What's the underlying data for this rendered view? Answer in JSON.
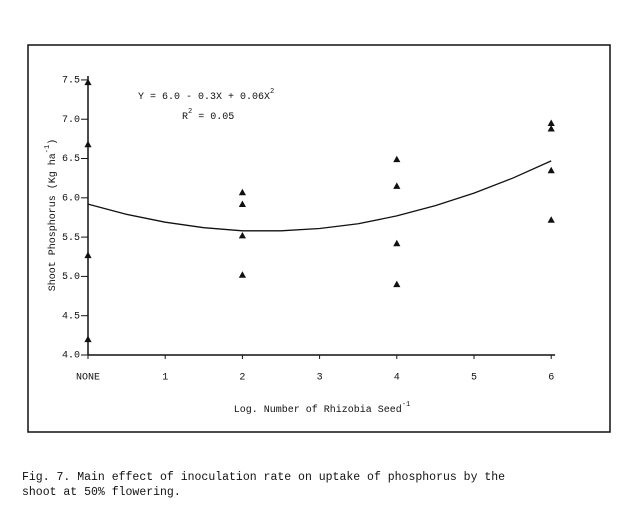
{
  "chart_data": {
    "type": "scatter",
    "xlabel": {
      "text": "Log. Number of Rhizobia Seed",
      "sup": "-1"
    },
    "ylabel": {
      "text": "Shoot Phosphorus (Kg ha",
      "sup": "-1",
      "end": ")"
    },
    "annotations": [
      {
        "text": "Y = 6.0 - 0.3X + 0.06X",
        "sup": "2"
      },
      {
        "text": "R",
        "sup": "2",
        "end": " = 0.05"
      }
    ],
    "caption": [
      "Fig. 7. Main effect of inoculation rate on uptake of phosphorus by the",
      "shoot at 50% flowering."
    ],
    "xlim": [
      0,
      6.05
    ],
    "ylim": [
      4,
      7.55
    ],
    "xticks": [
      {
        "value": 0,
        "label": "NONE"
      },
      1,
      2,
      3,
      4,
      5,
      6
    ],
    "yticks": [
      {
        "value": 4,
        "label": "4.0"
      },
      4.5,
      {
        "value": 5,
        "label": "5.0"
      },
      5.5,
      {
        "value": 6,
        "label": "6.0"
      },
      6.5,
      {
        "value": 7,
        "label": "7.0"
      },
      7.5
    ],
    "series": [
      {
        "type": "scatter",
        "marker": "triangle",
        "color": "#111111",
        "x": [
          0,
          0,
          0,
          0,
          2,
          2,
          2,
          2,
          4,
          4,
          4,
          4,
          6,
          6,
          6,
          6
        ],
        "values": [
          7.47,
          6.68,
          5.27,
          4.2,
          6.07,
          5.92,
          5.52,
          5.02,
          6.49,
          6.15,
          5.42,
          4.9,
          6.95,
          6.88,
          6.35,
          5.72
        ]
      },
      {
        "type": "line",
        "color": "#111111",
        "x": [
          0,
          0.5,
          1,
          1.5,
          2,
          2.5,
          3,
          3.5,
          4,
          4.5,
          5,
          5.5,
          6
        ],
        "values": [
          5.92,
          5.79,
          5.69,
          5.62,
          5.58,
          5.58,
          5.61,
          5.67,
          5.77,
          5.9,
          6.06,
          6.25,
          6.47
        ]
      }
    ]
  }
}
